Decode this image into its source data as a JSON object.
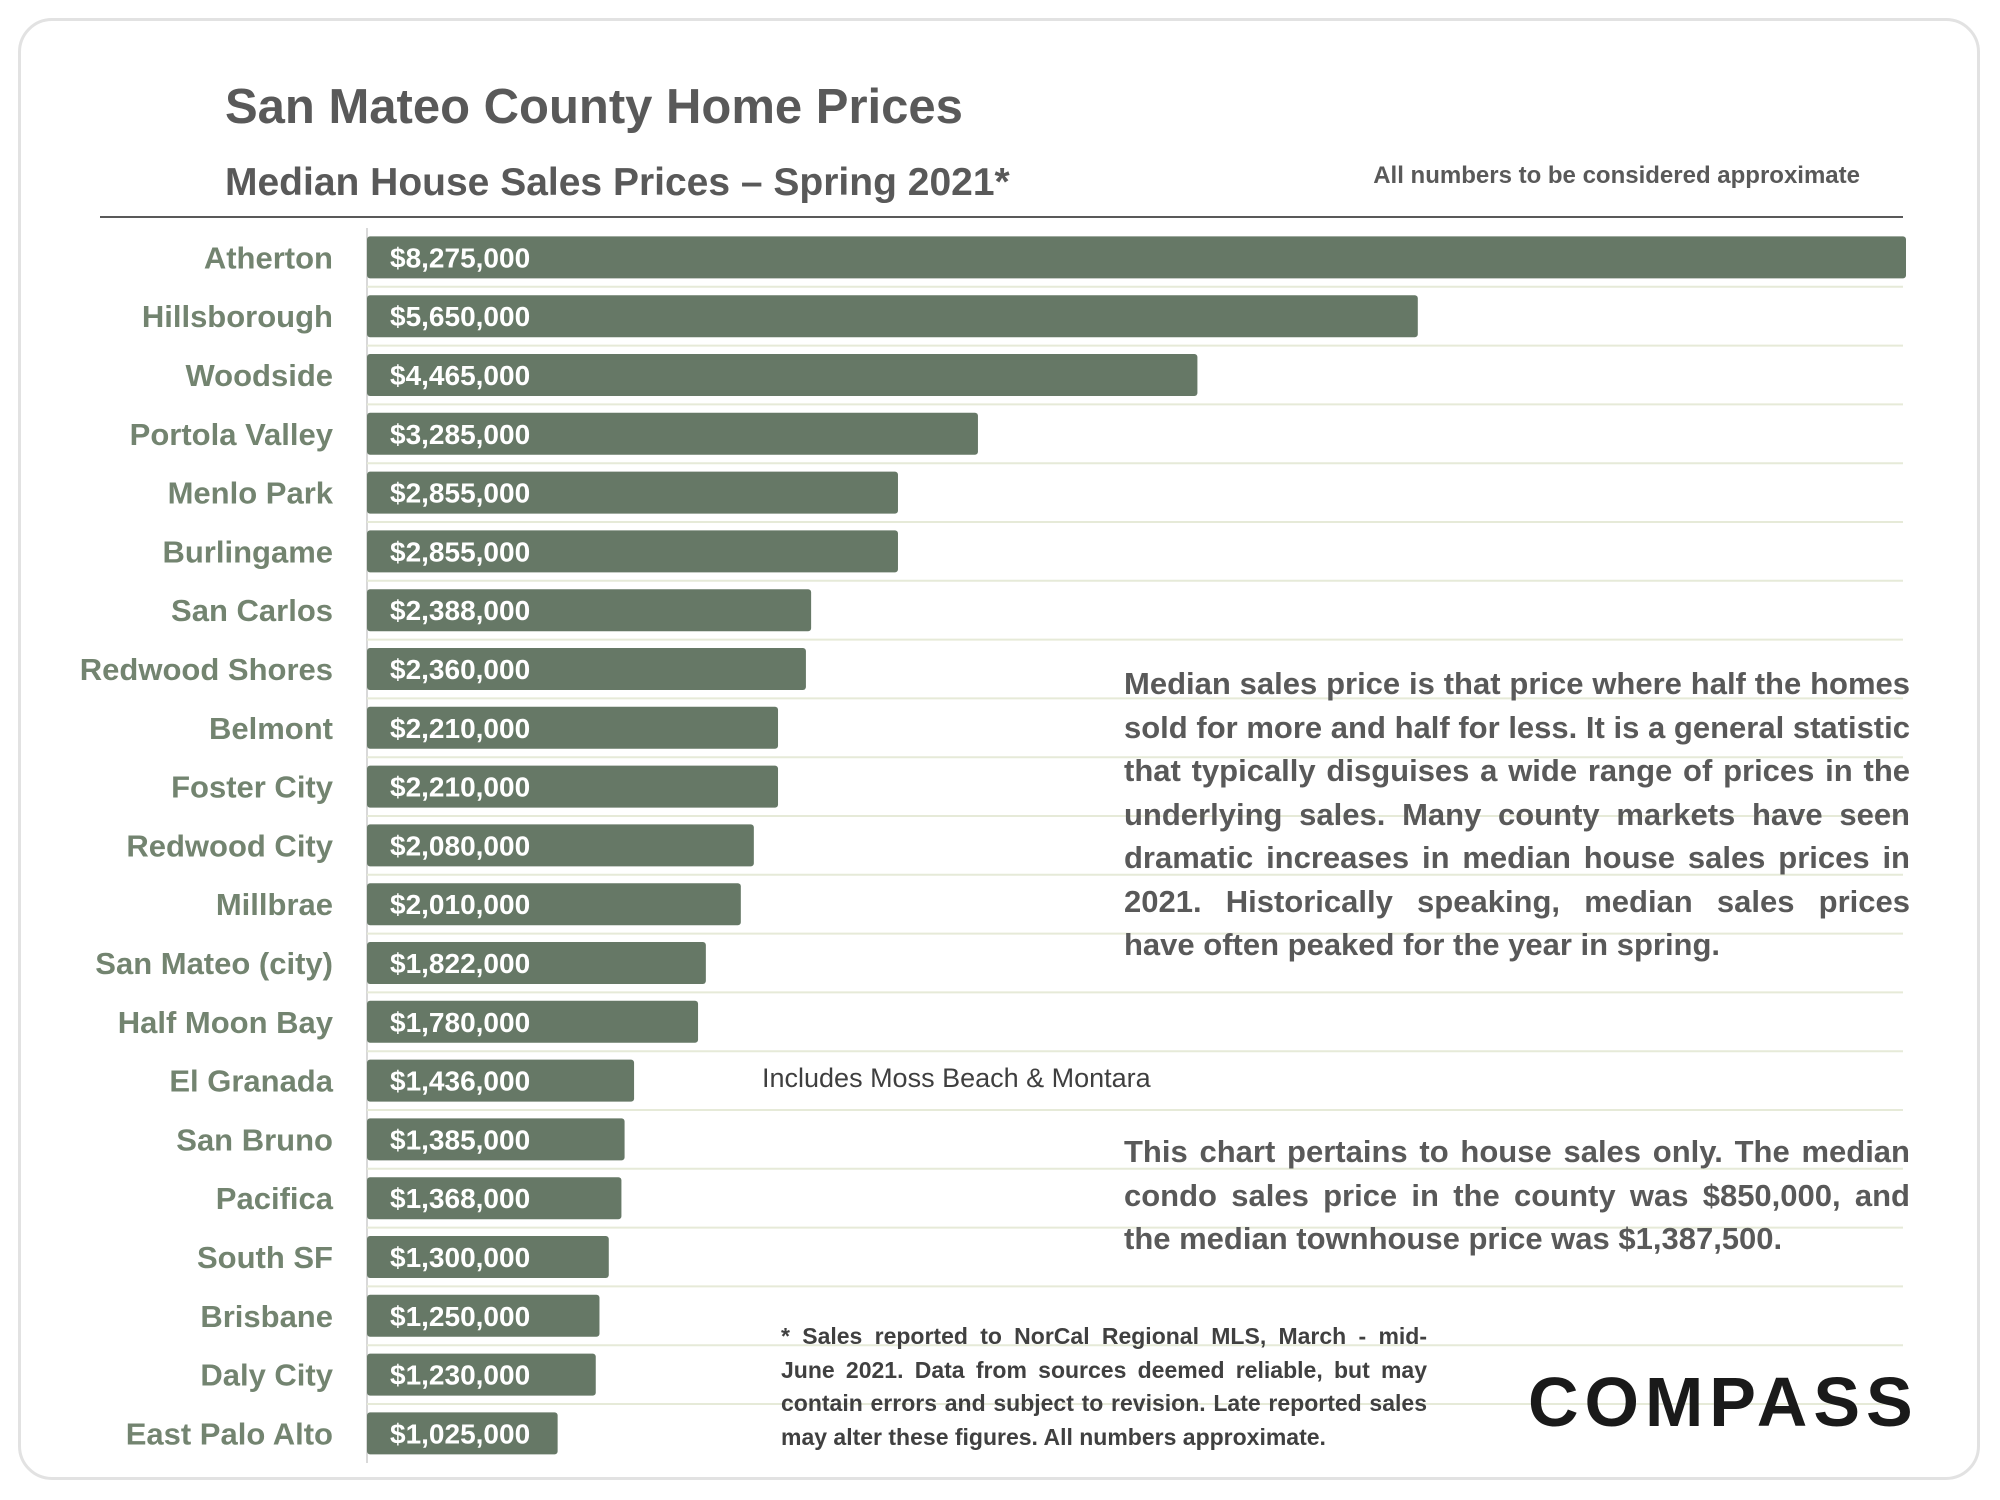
{
  "title": "San Mateo County Home Prices",
  "subtitle": "Median House Sales Prices – Spring 2021*",
  "disclaimer": "All numbers to be considered approximate",
  "note_median": "Median sales price is that price where half the homes sold for more and half for less. It is a general statistic that typically disguises a wide range of prices in the underlying sales. Many county markets have seen dramatic increases in median house sales prices in 2021. Historically speaking, median sales prices have often peaked for the year in spring.",
  "note_house": "This chart pertains to house sales only. The median condo sales price in the county was $850,000, and the median townhouse price was $1,387,500.",
  "note_el_granada": "Includes Moss Beach & Montara",
  "footnote": "* Sales reported to NorCal Regional MLS, March - mid-June 2021. Data from sources deemed reliable, but may contain errors and subject to revision. Late reported sales may alter these figures. All numbers approximate.",
  "logo": "COMPASS",
  "colors": {
    "bar": "#667866",
    "label": "#738470",
    "text": "#595959",
    "grid": "#e6ead8"
  },
  "chart_data": {
    "type": "bar",
    "orientation": "horizontal",
    "categories": [
      "Atherton",
      "Hillsborough",
      "Woodside",
      "Portola Valley",
      "Menlo Park",
      "Burlingame",
      "San Carlos",
      "Redwood Shores",
      "Belmont",
      "Foster City",
      "Redwood City",
      "Millbrae",
      "San Mateo (city)",
      "Half Moon Bay",
      "El Granada",
      "San Bruno",
      "Pacifica",
      "South SF",
      "Brisbane",
      "Daly City",
      "East Palo Alto"
    ],
    "values": [
      8275000,
      5650000,
      4465000,
      3285000,
      2855000,
      2855000,
      2388000,
      2360000,
      2210000,
      2210000,
      2080000,
      2010000,
      1822000,
      1780000,
      1436000,
      1385000,
      1368000,
      1300000,
      1250000,
      1230000,
      1025000
    ],
    "data_labels": [
      "$8,275,000",
      "$5,650,000",
      "$4,465,000",
      "$3,285,000",
      "$2,855,000",
      "$2,855,000",
      "$2,388,000",
      "$2,360,000",
      "$2,210,000",
      "$2,210,000",
      "$2,080,000",
      "$2,010,000",
      "$1,822,000",
      "$1,780,000",
      "$1,436,000",
      "$1,385,000",
      "$1,368,000",
      "$1,300,000",
      "$1,250,000",
      "$1,230,000",
      "$1,025,000"
    ],
    "xlim": [
      0,
      8275000
    ],
    "grid": true
  }
}
